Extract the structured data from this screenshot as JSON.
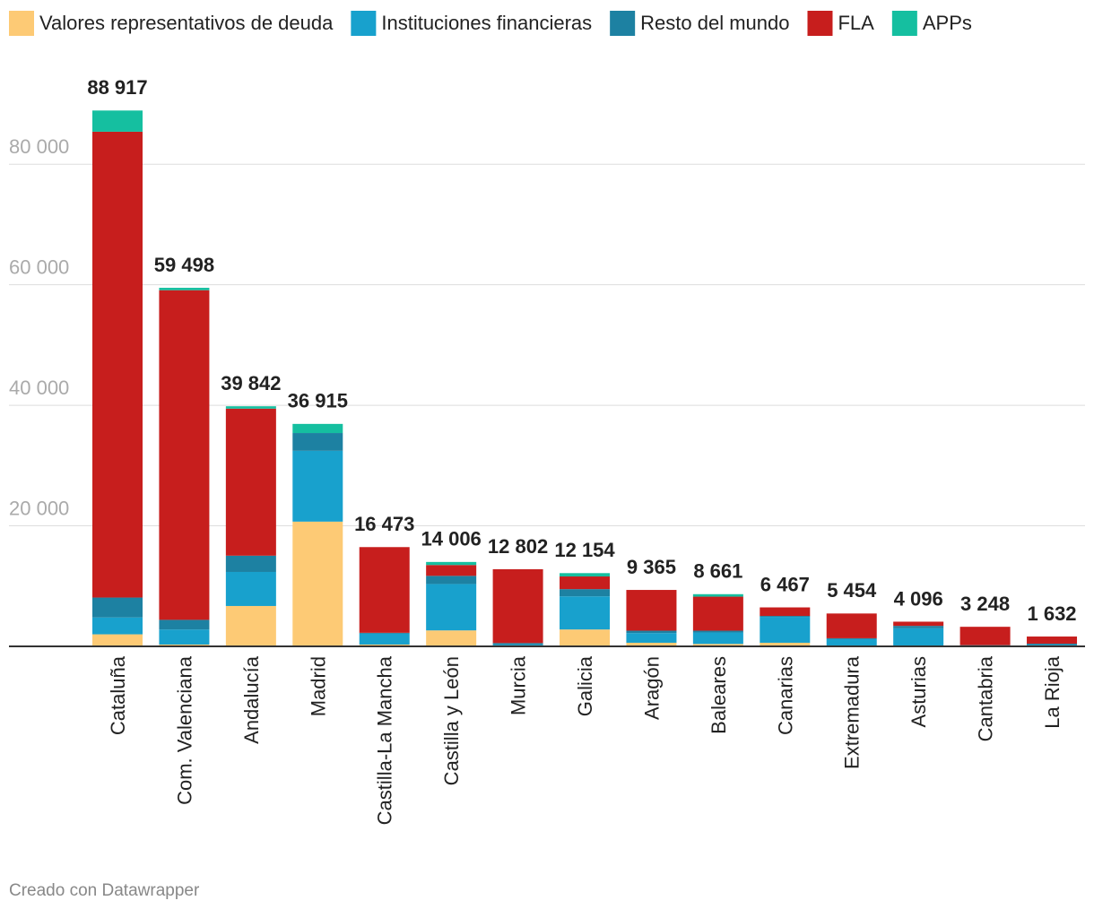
{
  "chart_data": {
    "type": "stacked-bar",
    "categories": [
      "Cataluña",
      "Com. Valenciana",
      "Andalucía",
      "Madrid",
      "Castilla-La Mancha",
      "Castilla y León",
      "Murcia",
      "Galicia",
      "Aragón",
      "Baleares",
      "Canarias",
      "Extremadura",
      "Asturias",
      "Cantabria",
      "La Rioja"
    ],
    "series": [
      {
        "name": "Valores representativos de deuda",
        "color": "#fdca75",
        "values": [
          2000,
          300,
          6700,
          20700,
          300,
          2650,
          100,
          2800,
          600,
          400,
          600,
          100,
          100,
          50,
          50
        ]
      },
      {
        "name": "Instituciones financieras",
        "color": "#18a1cd",
        "values": [
          2800,
          2500,
          5650,
          11750,
          1800,
          7700,
          150,
          5500,
          1600,
          1900,
          4300,
          1100,
          2900,
          100,
          150
        ]
      },
      {
        "name": "Resto del mundo",
        "color": "#1d81a2",
        "values": [
          3300,
          1600,
          2700,
          2950,
          150,
          1350,
          300,
          1200,
          400,
          300,
          150,
          150,
          400,
          50,
          250
        ]
      },
      {
        "name": "FLA",
        "color": "#c71e1d",
        "values": [
          77300,
          54700,
          24400,
          0,
          14223,
          1800,
          12252,
          2100,
          6765,
          5650,
          1417,
          4104,
          696,
          3048,
          1182
        ]
      },
      {
        "name": "APPs",
        "color": "#15bfa0",
        "values": [
          3517,
          398,
          392,
          1515,
          0,
          506,
          0,
          554,
          0,
          411,
          0,
          0,
          0,
          0,
          0
        ]
      }
    ],
    "totals": [
      88917,
      59498,
      39842,
      36915,
      16473,
      14006,
      12802,
      12154,
      9365,
      8661,
      6467,
      5454,
      4096,
      3248,
      1632
    ],
    "total_labels": [
      "88 917",
      "59 498",
      "39 842",
      "36 915",
      "16 473",
      "14 006",
      "12 802",
      "12 154",
      "9 365",
      "8 661",
      "6 467",
      "5 454",
      "4 096",
      "3 248",
      "1 632"
    ],
    "ylim": [
      0,
      90000
    ],
    "yticks": [
      {
        "value": 20000,
        "label": "20 000"
      },
      {
        "value": 40000,
        "label": "40 000"
      },
      {
        "value": 60000,
        "label": "60 000"
      },
      {
        "value": 80000,
        "label": "80 000"
      }
    ],
    "grid": true,
    "legend": "top",
    "footer": "Creado con Datawrapper"
  }
}
